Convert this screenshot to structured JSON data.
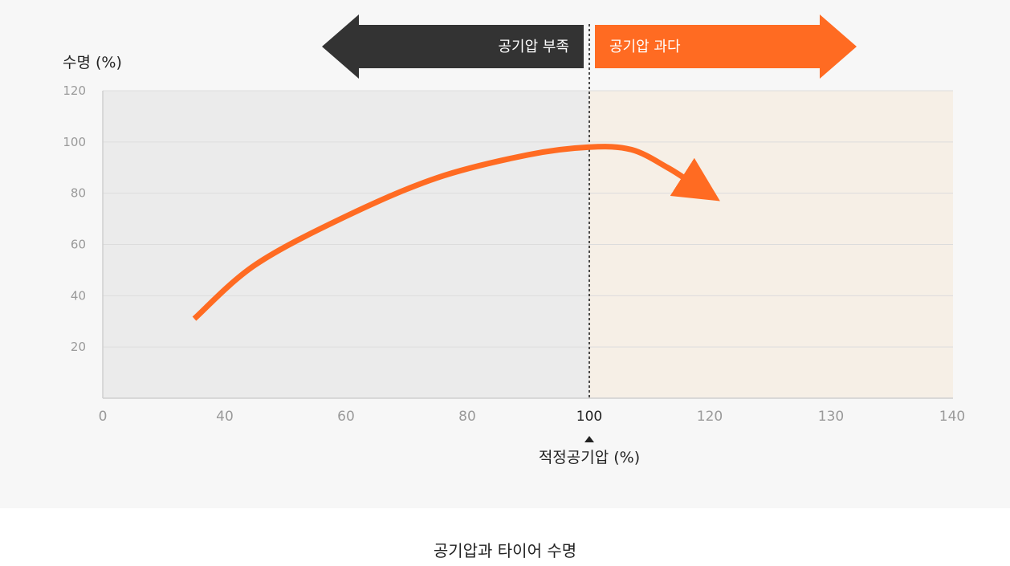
{
  "caption": "공기압과 타이어 수명",
  "chart_data": {
    "type": "line",
    "ylabel": "수명 (%)",
    "xlabel": "적정공기압 (%)",
    "x_ticks": [
      "0",
      "40",
      "60",
      "80",
      "100",
      "120",
      "130",
      "140"
    ],
    "y_ticks": [
      "20",
      "40",
      "60",
      "80",
      "100",
      "120"
    ],
    "ylim": [
      0,
      120
    ],
    "x_highlight": "100",
    "divider_at": "100",
    "regions": [
      {
        "name": "공기압 부족",
        "direction": "left",
        "color": "#333333",
        "bg": "#ebebeb"
      },
      {
        "name": "공기압 과다",
        "direction": "right",
        "color": "#ff6b22",
        "bg": "#f6efe6"
      }
    ],
    "series": [
      {
        "color": "#ff6b22",
        "points": [
          {
            "x": 30,
            "y": 31
          },
          {
            "x": 45,
            "y": 52
          },
          {
            "x": 60,
            "y": 71
          },
          {
            "x": 75,
            "y": 86
          },
          {
            "x": 90,
            "y": 95
          },
          {
            "x": 100,
            "y": 98
          },
          {
            "x": 107,
            "y": 97
          },
          {
            "x": 113,
            "y": 90
          },
          {
            "x": 117,
            "y": 84
          }
        ]
      }
    ],
    "grid": true
  }
}
